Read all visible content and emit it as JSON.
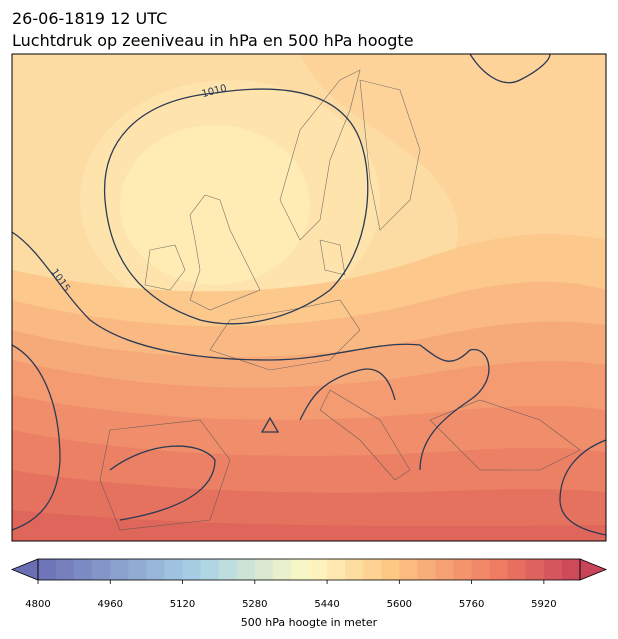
{
  "header": {
    "title": "26-06-1819 12 UTC",
    "subtitle": "Luchtdruk op zeeniveau in hPa en 500 hPa hoogte"
  },
  "isobar_labels": [
    1010,
    1015
  ],
  "colorbar": {
    "lim": [
      4800,
      6000
    ],
    "ticks": [
      4800,
      4960,
      5120,
      5280,
      5440,
      5600,
      5760,
      5920
    ],
    "label": "500 hPa hoogte in meter"
  }
}
